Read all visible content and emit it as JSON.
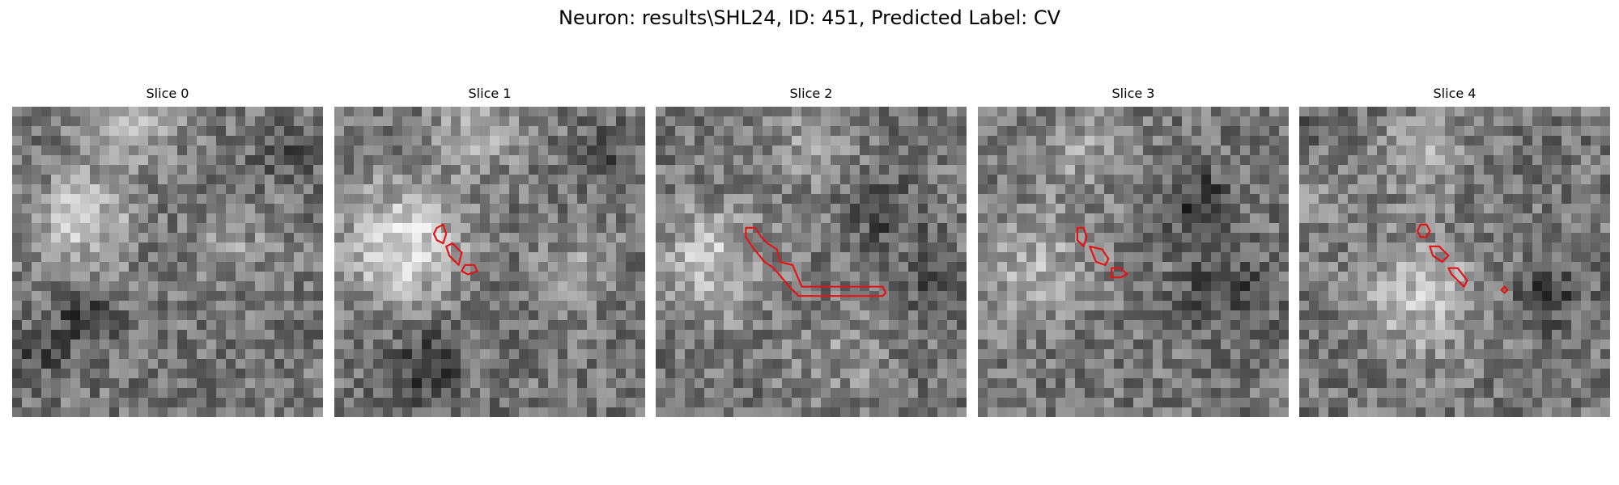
{
  "figure": {
    "title": "Neuron: results\\SHL24, ID: 451, Predicted Label: CV",
    "contour_color": "#e41414",
    "colormap": "gray"
  },
  "panels": [
    {
      "title": "Slice 0",
      "blobs": [
        {
          "c": [
            22,
            37
          ],
          "r": 11,
          "a": 0.32
        },
        {
          "c": [
            40,
            3
          ],
          "r": 11,
          "a": 0.2
        },
        {
          "c": [
            72,
            45
          ],
          "r": 9,
          "a": 0.12
        }
      ],
      "darks": [
        {
          "c": [
            22,
            68
          ],
          "r": 7,
          "a": 0.22
        },
        {
          "c": [
            8,
            80
          ],
          "r": 5,
          "a": 0.2
        },
        {
          "c": [
            88,
            15
          ],
          "r": 6,
          "a": 0.15
        }
      ],
      "contours": []
    },
    {
      "title": "Slice 1",
      "blobs": [
        {
          "c": [
            22,
            44
          ],
          "r": 13,
          "a": 0.42
        },
        {
          "c": [
            45,
            8
          ],
          "r": 10,
          "a": 0.2
        },
        {
          "c": [
            78,
            52
          ],
          "r": 9,
          "a": 0.14
        }
      ],
      "darks": [
        {
          "c": [
            30,
            84
          ],
          "r": 9,
          "a": 0.22
        },
        {
          "c": [
            88,
            15
          ],
          "r": 6,
          "a": 0.15
        }
      ],
      "contours": [
        [
          [
            33,
            39
          ],
          [
            35,
            38
          ],
          [
            36,
            41
          ],
          [
            35,
            44
          ],
          [
            33,
            43
          ],
          [
            32,
            41
          ]
        ],
        [
          [
            36,
            45
          ],
          [
            38,
            44
          ],
          [
            41,
            47
          ],
          [
            40,
            51
          ],
          [
            37,
            48
          ]
        ],
        [
          [
            42,
            51
          ],
          [
            45,
            51
          ],
          [
            46,
            53
          ],
          [
            43,
            54
          ],
          [
            41,
            53
          ]
        ]
      ]
    },
    {
      "title": "Slice 2",
      "blobs": [
        {
          "c": [
            18,
            50
          ],
          "r": 12,
          "a": 0.3
        },
        {
          "c": [
            50,
            10
          ],
          "r": 10,
          "a": 0.15
        },
        {
          "c": [
            60,
            80
          ],
          "r": 10,
          "a": 0.12
        }
      ],
      "darks": [
        {
          "c": [
            75,
            35
          ],
          "r": 8,
          "a": 0.15
        },
        {
          "c": [
            90,
            58
          ],
          "r": 6,
          "a": 0.2
        }
      ],
      "contours": [
        [
          [
            29,
            39
          ],
          [
            32,
            39
          ],
          [
            34,
            42
          ],
          [
            36,
            44
          ],
          [
            39,
            46
          ],
          [
            40,
            50
          ],
          [
            44,
            51
          ],
          [
            47,
            58
          ],
          [
            73,
            58
          ],
          [
            74,
            60
          ],
          [
            73,
            61
          ],
          [
            46,
            61
          ],
          [
            43,
            58
          ],
          [
            38,
            52
          ],
          [
            35,
            50
          ],
          [
            31,
            45
          ],
          [
            29,
            42
          ]
        ]
      ]
    },
    {
      "title": "Slice 3",
      "blobs": [
        {
          "c": [
            18,
            52
          ],
          "r": 13,
          "a": 0.22
        },
        {
          "c": [
            35,
            15
          ],
          "r": 10,
          "a": 0.15
        }
      ],
      "darks": [
        {
          "c": [
            70,
            30
          ],
          "r": 8,
          "a": 0.22
        },
        {
          "c": [
            80,
            60
          ],
          "r": 10,
          "a": 0.18
        }
      ],
      "contours": [
        [
          [
            32,
            39
          ],
          [
            34,
            39
          ],
          [
            35,
            42
          ],
          [
            34,
            45
          ],
          [
            32,
            43
          ]
        ],
        [
          [
            36,
            45
          ],
          [
            40,
            46
          ],
          [
            42,
            49
          ],
          [
            41,
            51
          ],
          [
            38,
            50
          ]
        ],
        [
          [
            43,
            52
          ],
          [
            46,
            52
          ],
          [
            48,
            54
          ],
          [
            46,
            55
          ],
          [
            43,
            55
          ]
        ]
      ]
    },
    {
      "title": "Slice 4",
      "blobs": [
        {
          "c": [
            40,
            62
          ],
          "r": 13,
          "a": 0.3
        },
        {
          "c": [
            40,
            15
          ],
          "r": 10,
          "a": 0.18
        },
        {
          "c": [
            10,
            30
          ],
          "r": 8,
          "a": 0.1
        }
      ],
      "darks": [
        {
          "c": [
            80,
            60
          ],
          "r": 8,
          "a": 0.2
        },
        {
          "c": [
            5,
            5
          ],
          "r": 4,
          "a": 0.12
        }
      ],
      "contours": [
        [
          [
            39,
            38
          ],
          [
            41,
            38
          ],
          [
            42,
            40
          ],
          [
            41,
            42
          ],
          [
            39,
            42
          ],
          [
            38,
            40
          ]
        ],
        [
          [
            42,
            45
          ],
          [
            45,
            45
          ],
          [
            48,
            48
          ],
          [
            46,
            50
          ],
          [
            43,
            48
          ]
        ],
        [
          [
            48,
            52
          ],
          [
            51,
            52
          ],
          [
            54,
            56
          ],
          [
            53,
            58
          ],
          [
            49,
            54
          ]
        ],
        [
          [
            65,
            59
          ],
          [
            66,
            58
          ],
          [
            67,
            59
          ],
          [
            66,
            60
          ]
        ]
      ]
    }
  ]
}
